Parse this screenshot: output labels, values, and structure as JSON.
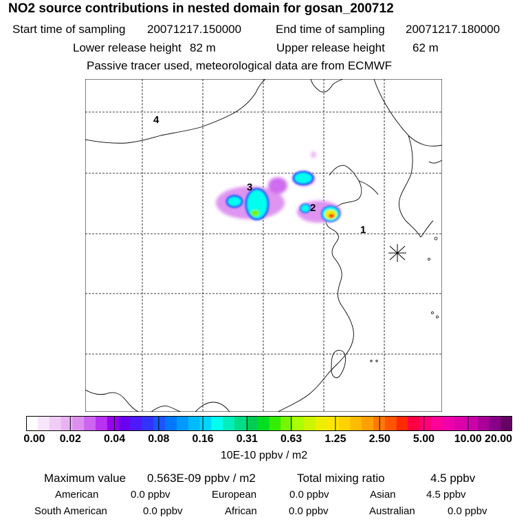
{
  "header": {
    "title": "NO2 source contributions in nested domain for gosan_200712",
    "start_label": "Start time of sampling",
    "start_value": "20071217.150000",
    "end_label": "End time of sampling",
    "end_value": "20071217.180000",
    "lower_label": "Lower release height",
    "lower_value": "82 m",
    "upper_label": "Upper release height",
    "upper_value": "62 m",
    "note": "Passive tracer used, meteorological data are from ECMWF"
  },
  "map": {
    "region_labels": [
      "1",
      "2",
      "3",
      "4"
    ],
    "receptor_icon": "asterisk-receptor-marker"
  },
  "colorbar": {
    "colors": [
      "#ffffff",
      "#f7e6fb",
      "#f0ccf7",
      "#e9b3f3",
      "#dd8ff0",
      "#cc66ee",
      "#b833f0",
      "#9900f0",
      "#6a00f0",
      "#4d1aff",
      "#3333ff",
      "#1a55ff",
      "#0077ff",
      "#0099ff",
      "#00bbff",
      "#00d5ff",
      "#00ffee",
      "#00eebb",
      "#00dd88",
      "#00cc55",
      "#00dd22",
      "#33ee00",
      "#77f500",
      "#aaff00",
      "#ccf500",
      "#eeee00",
      "#ffe600",
      "#ffd200",
      "#ffbb00",
      "#ffa000",
      "#ff7a00",
      "#ff5500",
      "#ff2a00",
      "#ff0044",
      "#ff0077",
      "#ff0099",
      "#ee00aa",
      "#dd00aa",
      "#cc00aa",
      "#aa0099",
      "#880088",
      "#660066"
    ],
    "ticks": [
      "0.00",
      "0.02",
      "0.04",
      "0.08",
      "0.16",
      "0.31",
      "0.63",
      "1.25",
      "2.50",
      "5.00",
      "10.00",
      "20.00"
    ],
    "unit": "10E-10 ppbv / m2"
  },
  "stats": {
    "max_label": "Maximum value",
    "max_value": "0.563E-09 ppbv / m2",
    "total_label": "Total mixing ratio",
    "total_value": "4.5 ppbv",
    "regions": [
      {
        "name": "American",
        "value": "0.0 ppbv"
      },
      {
        "name": "European",
        "value": "0.0 ppbv"
      },
      {
        "name": "Asian",
        "value": "4.5 ppbv"
      },
      {
        "name": "South American",
        "value": "0.0 ppbv"
      },
      {
        "name": "African",
        "value": "0.0 ppbv"
      },
      {
        "name": "Australian",
        "value": "0.0 ppbv"
      }
    ]
  }
}
